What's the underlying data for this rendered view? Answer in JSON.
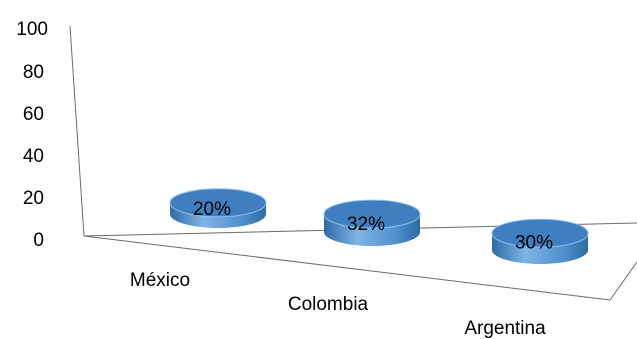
{
  "chart_data": {
    "type": "bar",
    "style": "3d-cylinder",
    "categories": [
      "México",
      "Colombia",
      "Argentina"
    ],
    "values": [
      20,
      32,
      30
    ],
    "data_labels": [
      "20%",
      "32%",
      "30%"
    ],
    "y_ticks": [
      "0",
      "20",
      "40",
      "60",
      "80",
      "100"
    ],
    "ylim": [
      0,
      100
    ],
    "title": "",
    "xlabel": "",
    "ylabel": "",
    "grid": false,
    "legend": "none",
    "colors": {
      "bar_side": "#4f8fcc",
      "bar_side_light": "#7fb5e6",
      "bar_side_dark": "#2f6aa3",
      "bar_top": "#3f7fbf",
      "bar_top_rim": "#8dbfe9"
    }
  }
}
